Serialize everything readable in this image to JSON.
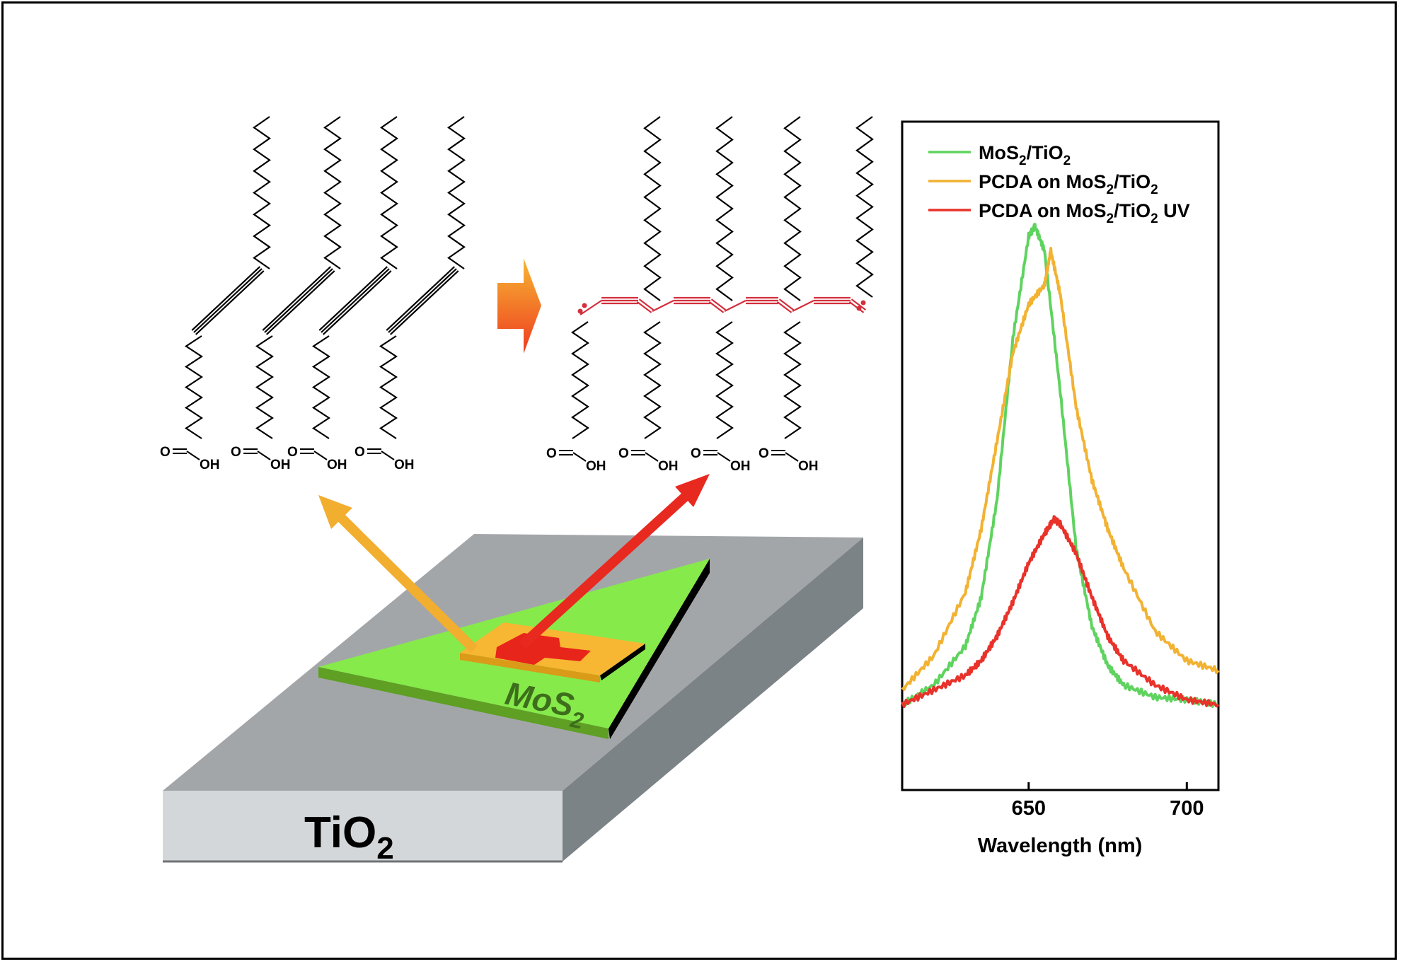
{
  "substrate": {
    "label": "TiO",
    "label_sub": "2"
  },
  "flake": {
    "label": "MoS",
    "label_sub": "2"
  },
  "atoms": {
    "carbonyl_o": "O",
    "hydroxyl": "OH"
  },
  "chart_data": {
    "type": "line",
    "xlabel": "Wavelength (nm)",
    "ylabel": "",
    "xlim": [
      610,
      710
    ],
    "ylim": [
      0,
      1
    ],
    "xticks": [
      650,
      700
    ],
    "legend_position": "top-left",
    "series": [
      {
        "name": "MoS2/TiO2",
        "legend_parts": [
          "MoS",
          "2",
          "/TiO",
          "2",
          ""
        ],
        "color": "#5fd35f",
        "x": [
          610,
          620,
          630,
          635,
          640,
          645,
          650,
          652,
          655,
          660,
          665,
          670,
          675,
          680,
          690,
          700,
          710
        ],
        "y": [
          0.02,
          0.06,
          0.14,
          0.24,
          0.44,
          0.77,
          0.98,
          1.0,
          0.95,
          0.66,
          0.34,
          0.18,
          0.1,
          0.06,
          0.035,
          0.03,
          0.02
        ]
      },
      {
        "name": "PCDA on MoS2/TiO2",
        "legend_parts": [
          "PCDA on MoS",
          "2",
          "/TiO",
          "2",
          ""
        ],
        "color": "#f2b232",
        "x": [
          610,
          620,
          630,
          635,
          640,
          645,
          650,
          655,
          657,
          660,
          665,
          670,
          675,
          680,
          690,
          700,
          710
        ],
        "y": [
          0.05,
          0.12,
          0.25,
          0.38,
          0.56,
          0.74,
          0.84,
          0.88,
          0.95,
          0.86,
          0.63,
          0.48,
          0.38,
          0.3,
          0.17,
          0.11,
          0.09
        ]
      },
      {
        "name": "PCDA on MoS2/TiO2 UV",
        "legend_parts": [
          "PCDA on MoS",
          "2",
          "/TiO",
          "2",
          " UV"
        ],
        "color": "#e8322a",
        "x": [
          610,
          620,
          630,
          635,
          640,
          645,
          650,
          655,
          658,
          660,
          665,
          670,
          675,
          680,
          690,
          700,
          710
        ],
        "y": [
          0.02,
          0.05,
          0.08,
          0.11,
          0.16,
          0.23,
          0.31,
          0.37,
          0.4,
          0.39,
          0.33,
          0.24,
          0.16,
          0.11,
          0.06,
          0.03,
          0.02
        ]
      }
    ]
  }
}
